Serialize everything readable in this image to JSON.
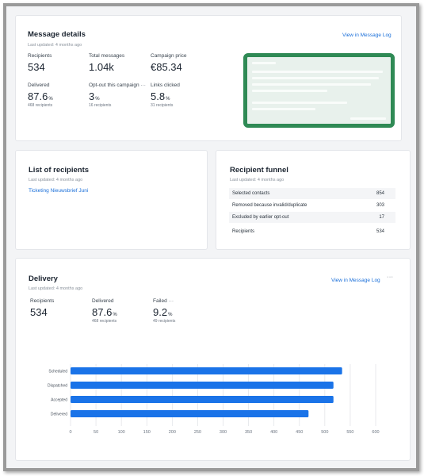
{
  "message_details": {
    "title": "Message details",
    "updated": "Last updated: 4 months ago",
    "link": "View in Message Log",
    "stats": [
      {
        "label": "Recipients",
        "value": "534",
        "unit": "",
        "sub": ""
      },
      {
        "label": "Total messages",
        "value": "1.04k",
        "unit": "",
        "sub": ""
      },
      {
        "label": "Campaign price",
        "value": "€85.34",
        "unit": "",
        "sub": ""
      },
      {
        "label": "Delivered",
        "value": "87.6",
        "unit": "%",
        "sub": "468 recipients"
      },
      {
        "label": "Opt-out this campaign",
        "value": "3",
        "unit": "%",
        "sub": "16 recipients"
      },
      {
        "label": "Links clicked",
        "value": "5.8",
        "unit": "%",
        "sub": "31 recipients"
      }
    ],
    "opt_out_more": "···"
  },
  "recipients_list": {
    "title": "List of recipients",
    "updated": "Last updated: 4 months ago",
    "item": "Ticketing Nieuwsbrief Juni"
  },
  "funnel": {
    "title": "Recipient funnel",
    "updated": "Last updated: 4 months ago",
    "rows": [
      {
        "label": "Selected contacts",
        "value": "854"
      },
      {
        "label": "Removed because invalid/duplicate",
        "value": "303"
      },
      {
        "label": "Excluded by earlier opt-out",
        "value": "17"
      },
      {
        "label": "Recipients",
        "value": "534"
      }
    ]
  },
  "delivery": {
    "title": "Delivery",
    "updated": "Last updated: 4 months ago",
    "link": "View in Message Log",
    "more": "···",
    "stats": [
      {
        "label": "Recipients",
        "value": "534",
        "unit": "",
        "sub": ""
      },
      {
        "label": "Delivered",
        "value": "87.6",
        "unit": "%",
        "sub": "468 recipients"
      },
      {
        "label": "Failed",
        "value": "9.2",
        "unit": "%",
        "sub": "49 recipients"
      }
    ],
    "failed_more": "···"
  },
  "colors": {
    "bar": "#1a73e8",
    "highlight_border": "#2f8a55",
    "link": "#1a6fd9"
  },
  "chart_data": {
    "type": "bar",
    "orientation": "horizontal",
    "categories": [
      "Scheduled",
      "Dispatched",
      "Accepted",
      "Delivered"
    ],
    "values": [
      534,
      517,
      517,
      468
    ],
    "xticks": [
      0,
      50,
      100,
      150,
      200,
      250,
      300,
      350,
      400,
      450,
      500,
      550,
      600
    ],
    "xlim": [
      0,
      600
    ],
    "grid": true,
    "title": "",
    "xlabel": "",
    "ylabel": ""
  }
}
